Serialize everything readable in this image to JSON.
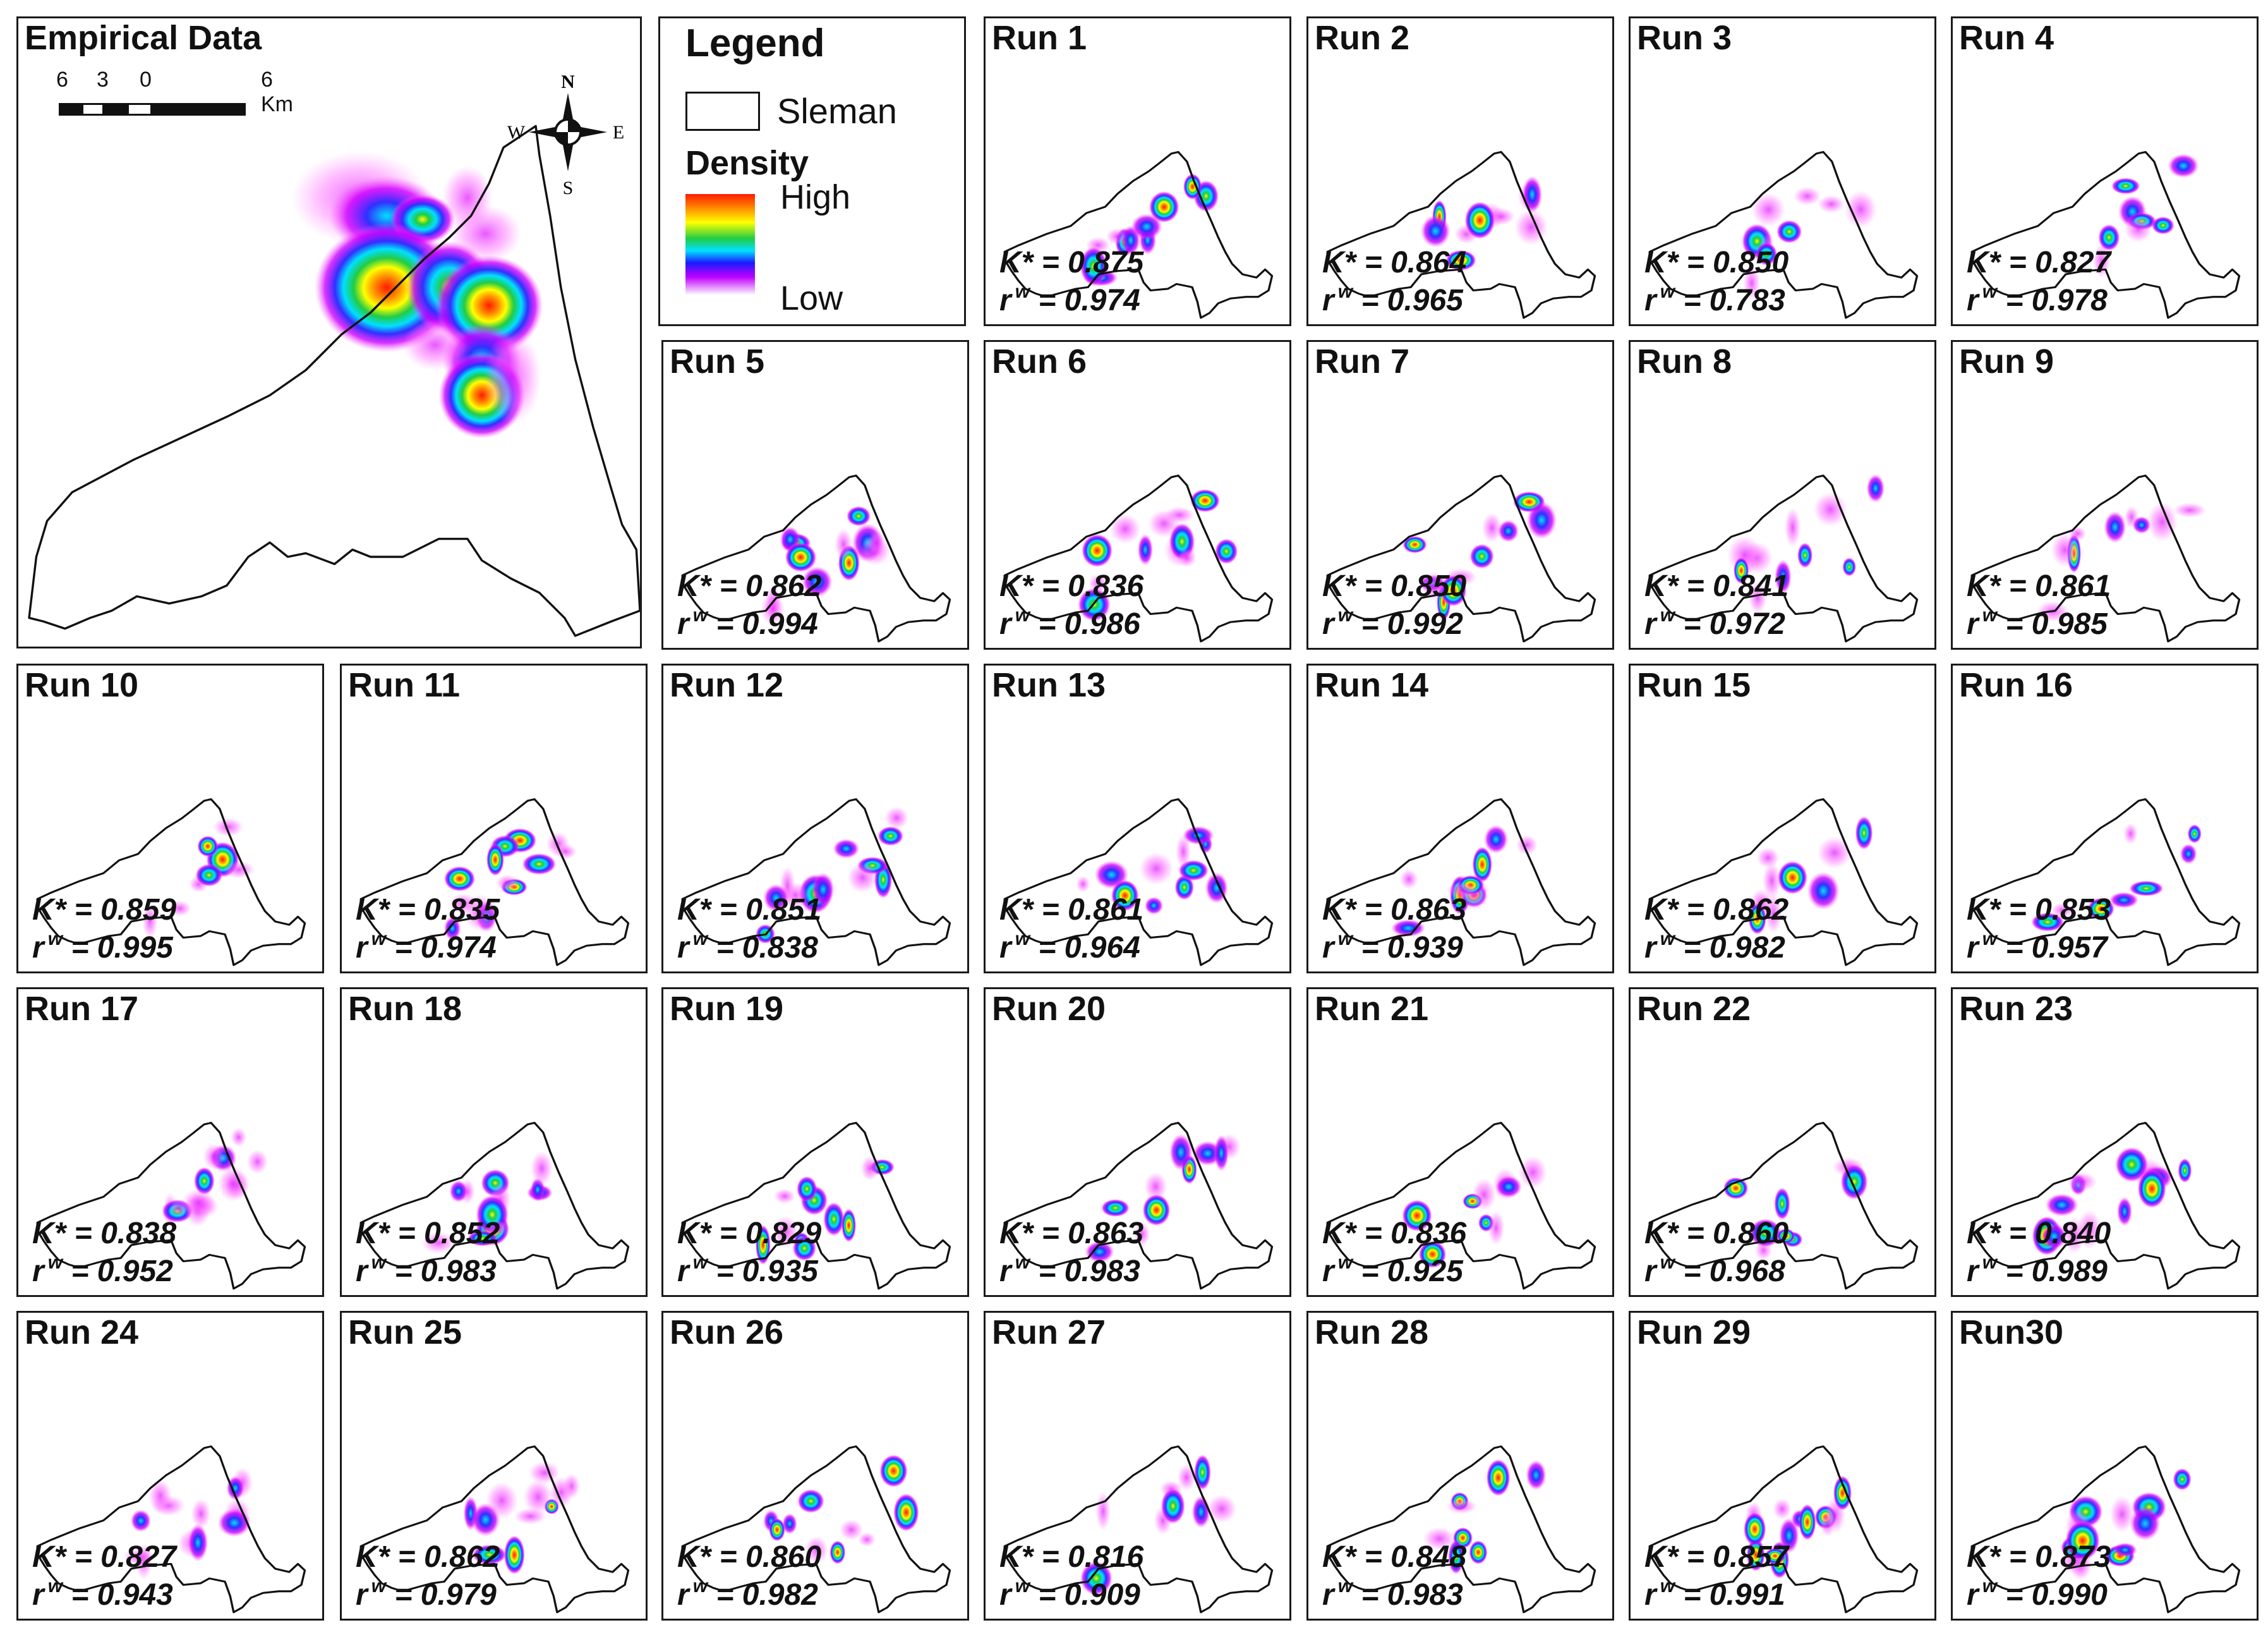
{
  "empirical": {
    "title": "Empirical Data",
    "scale_labels": [
      "6",
      "3",
      "0",
      "6 Km"
    ],
    "compass": {
      "n": "N",
      "s": "S",
      "e": "E",
      "w": "W"
    }
  },
  "legend": {
    "title": "Legend",
    "sleman": "Sleman",
    "density": "Density",
    "high": "High",
    "low": "Low"
  },
  "colors": {
    "high": "#ff1a00",
    "mid_high": "#ffff00",
    "mid": "#22cc44",
    "mid_low": "#00e0ff",
    "low": "#c000ff",
    "border": "#111111"
  },
  "stat_labels": {
    "k": "K* =",
    "r": "r",
    "r_sup": "w",
    "r_eq": "="
  },
  "runs": [
    {
      "label": "Run 1",
      "k": "0.875",
      "r": "0.974"
    },
    {
      "label": "Run 2",
      "k": "0.864",
      "r": "0.965"
    },
    {
      "label": "Run 3",
      "k": "0.850",
      "r": "0.783"
    },
    {
      "label": "Run 4",
      "k": "0.827",
      "r": "0.978"
    },
    {
      "label": "Run 5",
      "k": "0.862",
      "r": "0.994"
    },
    {
      "label": "Run 6",
      "k": "0.836",
      "r": "0.986"
    },
    {
      "label": "Run 7",
      "k": "0.850",
      "r": "0.992"
    },
    {
      "label": "Run 8",
      "k": "0.841",
      "r": "0.972"
    },
    {
      "label": "Run 9",
      "k": "0.861",
      "r": "0.985"
    },
    {
      "label": "Run 10",
      "k": "0.859",
      "r": "0.995"
    },
    {
      "label": "Run 11",
      "k": "0.835",
      "r": "0.974"
    },
    {
      "label": "Run 12",
      "k": "0.851",
      "r": "0.838"
    },
    {
      "label": "Run 13",
      "k": "0.861",
      "r": "0.964"
    },
    {
      "label": "Run 14",
      "k": "0.863",
      "r": "0.939"
    },
    {
      "label": "Run 15",
      "k": "0.862",
      "r": "0.982"
    },
    {
      "label": "Run 16",
      "k": "0.853",
      "r": "0.957"
    },
    {
      "label": "Run 17",
      "k": "0.838",
      "r": "0.952"
    },
    {
      "label": "Run 18",
      "k": "0.852",
      "r": "0.983"
    },
    {
      "label": "Run 19",
      "k": "0.829",
      "r": "0.935"
    },
    {
      "label": "Run 20",
      "k": "0.863",
      "r": "0.983"
    },
    {
      "label": "Run 21",
      "k": "0.836",
      "r": "0.925"
    },
    {
      "label": "Run 22",
      "k": "0.860",
      "r": "0.968"
    },
    {
      "label": "Run 23",
      "k": "0.840",
      "r": "0.989"
    },
    {
      "label": "Run 24",
      "k": "0.827",
      "r": "0.943"
    },
    {
      "label": "Run 25",
      "k": "0.862",
      "r": "0.979"
    },
    {
      "label": "Run 26",
      "k": "0.860",
      "r": "0.982"
    },
    {
      "label": "Run 27",
      "k": "0.816",
      "r": "0.909"
    },
    {
      "label": "Run 28",
      "k": "0.848",
      "r": "0.983"
    },
    {
      "label": "Run 29",
      "k": "0.857",
      "r": "0.991"
    },
    {
      "label": "Run30",
      "k": "0.873",
      "r": "0.990"
    }
  ]
}
